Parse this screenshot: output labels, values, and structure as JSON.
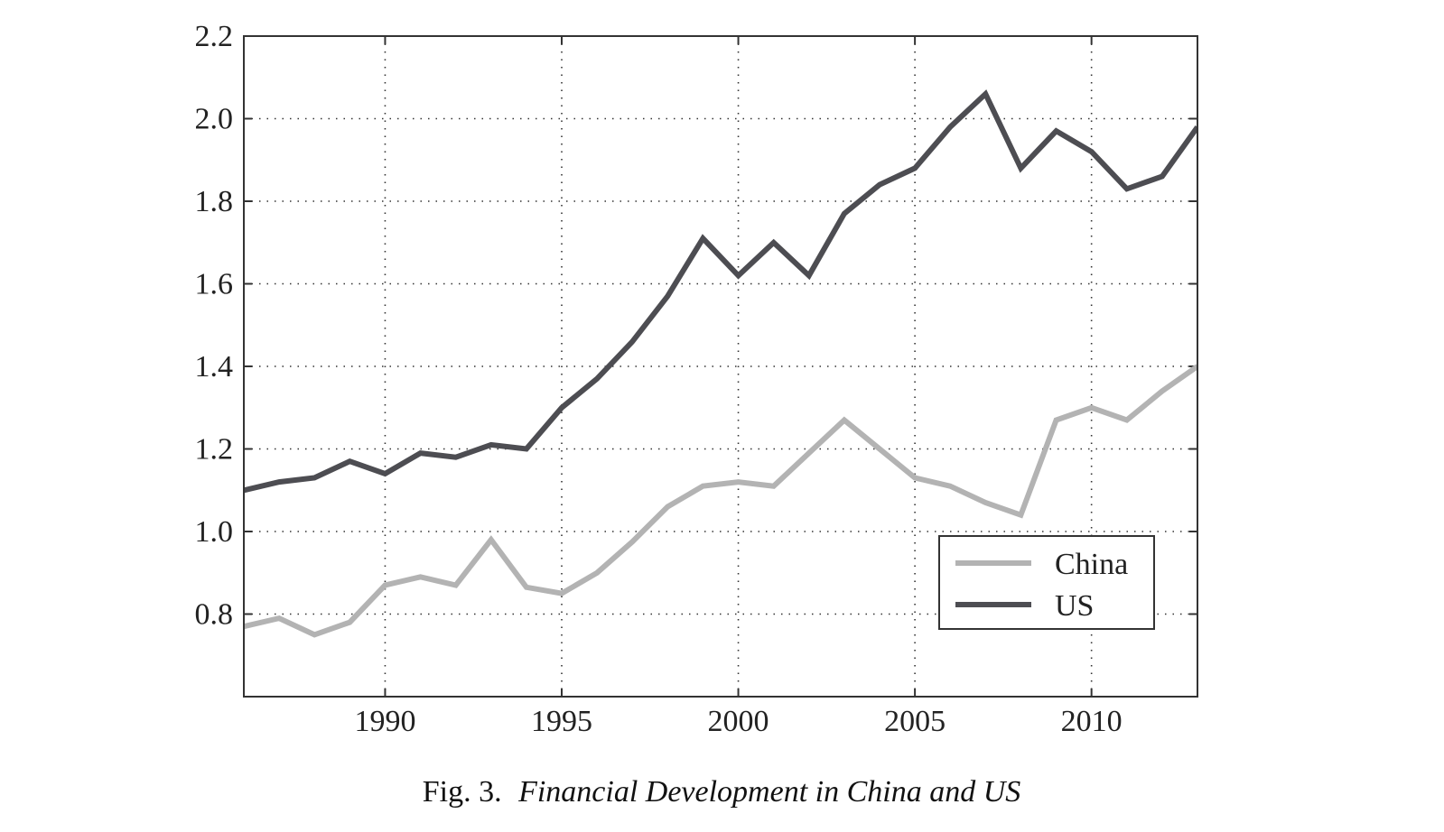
{
  "chart_data": {
    "type": "line",
    "x": [
      1986,
      1987,
      1988,
      1989,
      1990,
      1991,
      1992,
      1993,
      1994,
      1995,
      1996,
      1997,
      1998,
      1999,
      2000,
      2001,
      2002,
      2003,
      2004,
      2005,
      2006,
      2007,
      2008,
      2009,
      2010,
      2011,
      2012,
      2013
    ],
    "series": [
      {
        "name": "China",
        "color": "#b3b3b3",
        "values": [
          0.77,
          0.79,
          0.75,
          0.78,
          0.87,
          0.89,
          0.87,
          0.98,
          0.865,
          0.85,
          0.9,
          0.975,
          1.06,
          1.11,
          1.12,
          1.11,
          1.19,
          1.27,
          1.2,
          1.13,
          1.11,
          1.07,
          1.04,
          1.27,
          1.3,
          1.27,
          1.34,
          1.4
        ]
      },
      {
        "name": "US",
        "color": "#4d4d52",
        "values": [
          1.1,
          1.12,
          1.13,
          1.17,
          1.14,
          1.19,
          1.18,
          1.21,
          1.2,
          1.3,
          1.37,
          1.46,
          1.57,
          1.71,
          1.62,
          1.7,
          1.62,
          1.77,
          1.84,
          1.88,
          1.98,
          2.06,
          1.88,
          1.97,
          1.92,
          1.83,
          1.86,
          1.98
        ]
      }
    ],
    "xlim": [
      1986,
      2013
    ],
    "ylim": [
      0.6,
      2.2
    ],
    "xticks": [
      1990,
      1995,
      2000,
      2005,
      2010
    ],
    "yticks": [
      0.8,
      1.0,
      1.2,
      1.4,
      1.6,
      1.8,
      2.0,
      2.2
    ],
    "xtick_labels": [
      "1990",
      "1995",
      "2000",
      "2005",
      "2010"
    ],
    "ytick_labels": [
      "0.8",
      "1.0",
      "1.2",
      "1.4",
      "1.6",
      "1.8",
      "2.0",
      "2.2"
    ],
    "grid": true,
    "legend_position": "lower-right",
    "caption_prefix": "Fig. 3.",
    "caption_title": "Financial Development in China and US",
    "xlabel": "",
    "ylabel": ""
  }
}
